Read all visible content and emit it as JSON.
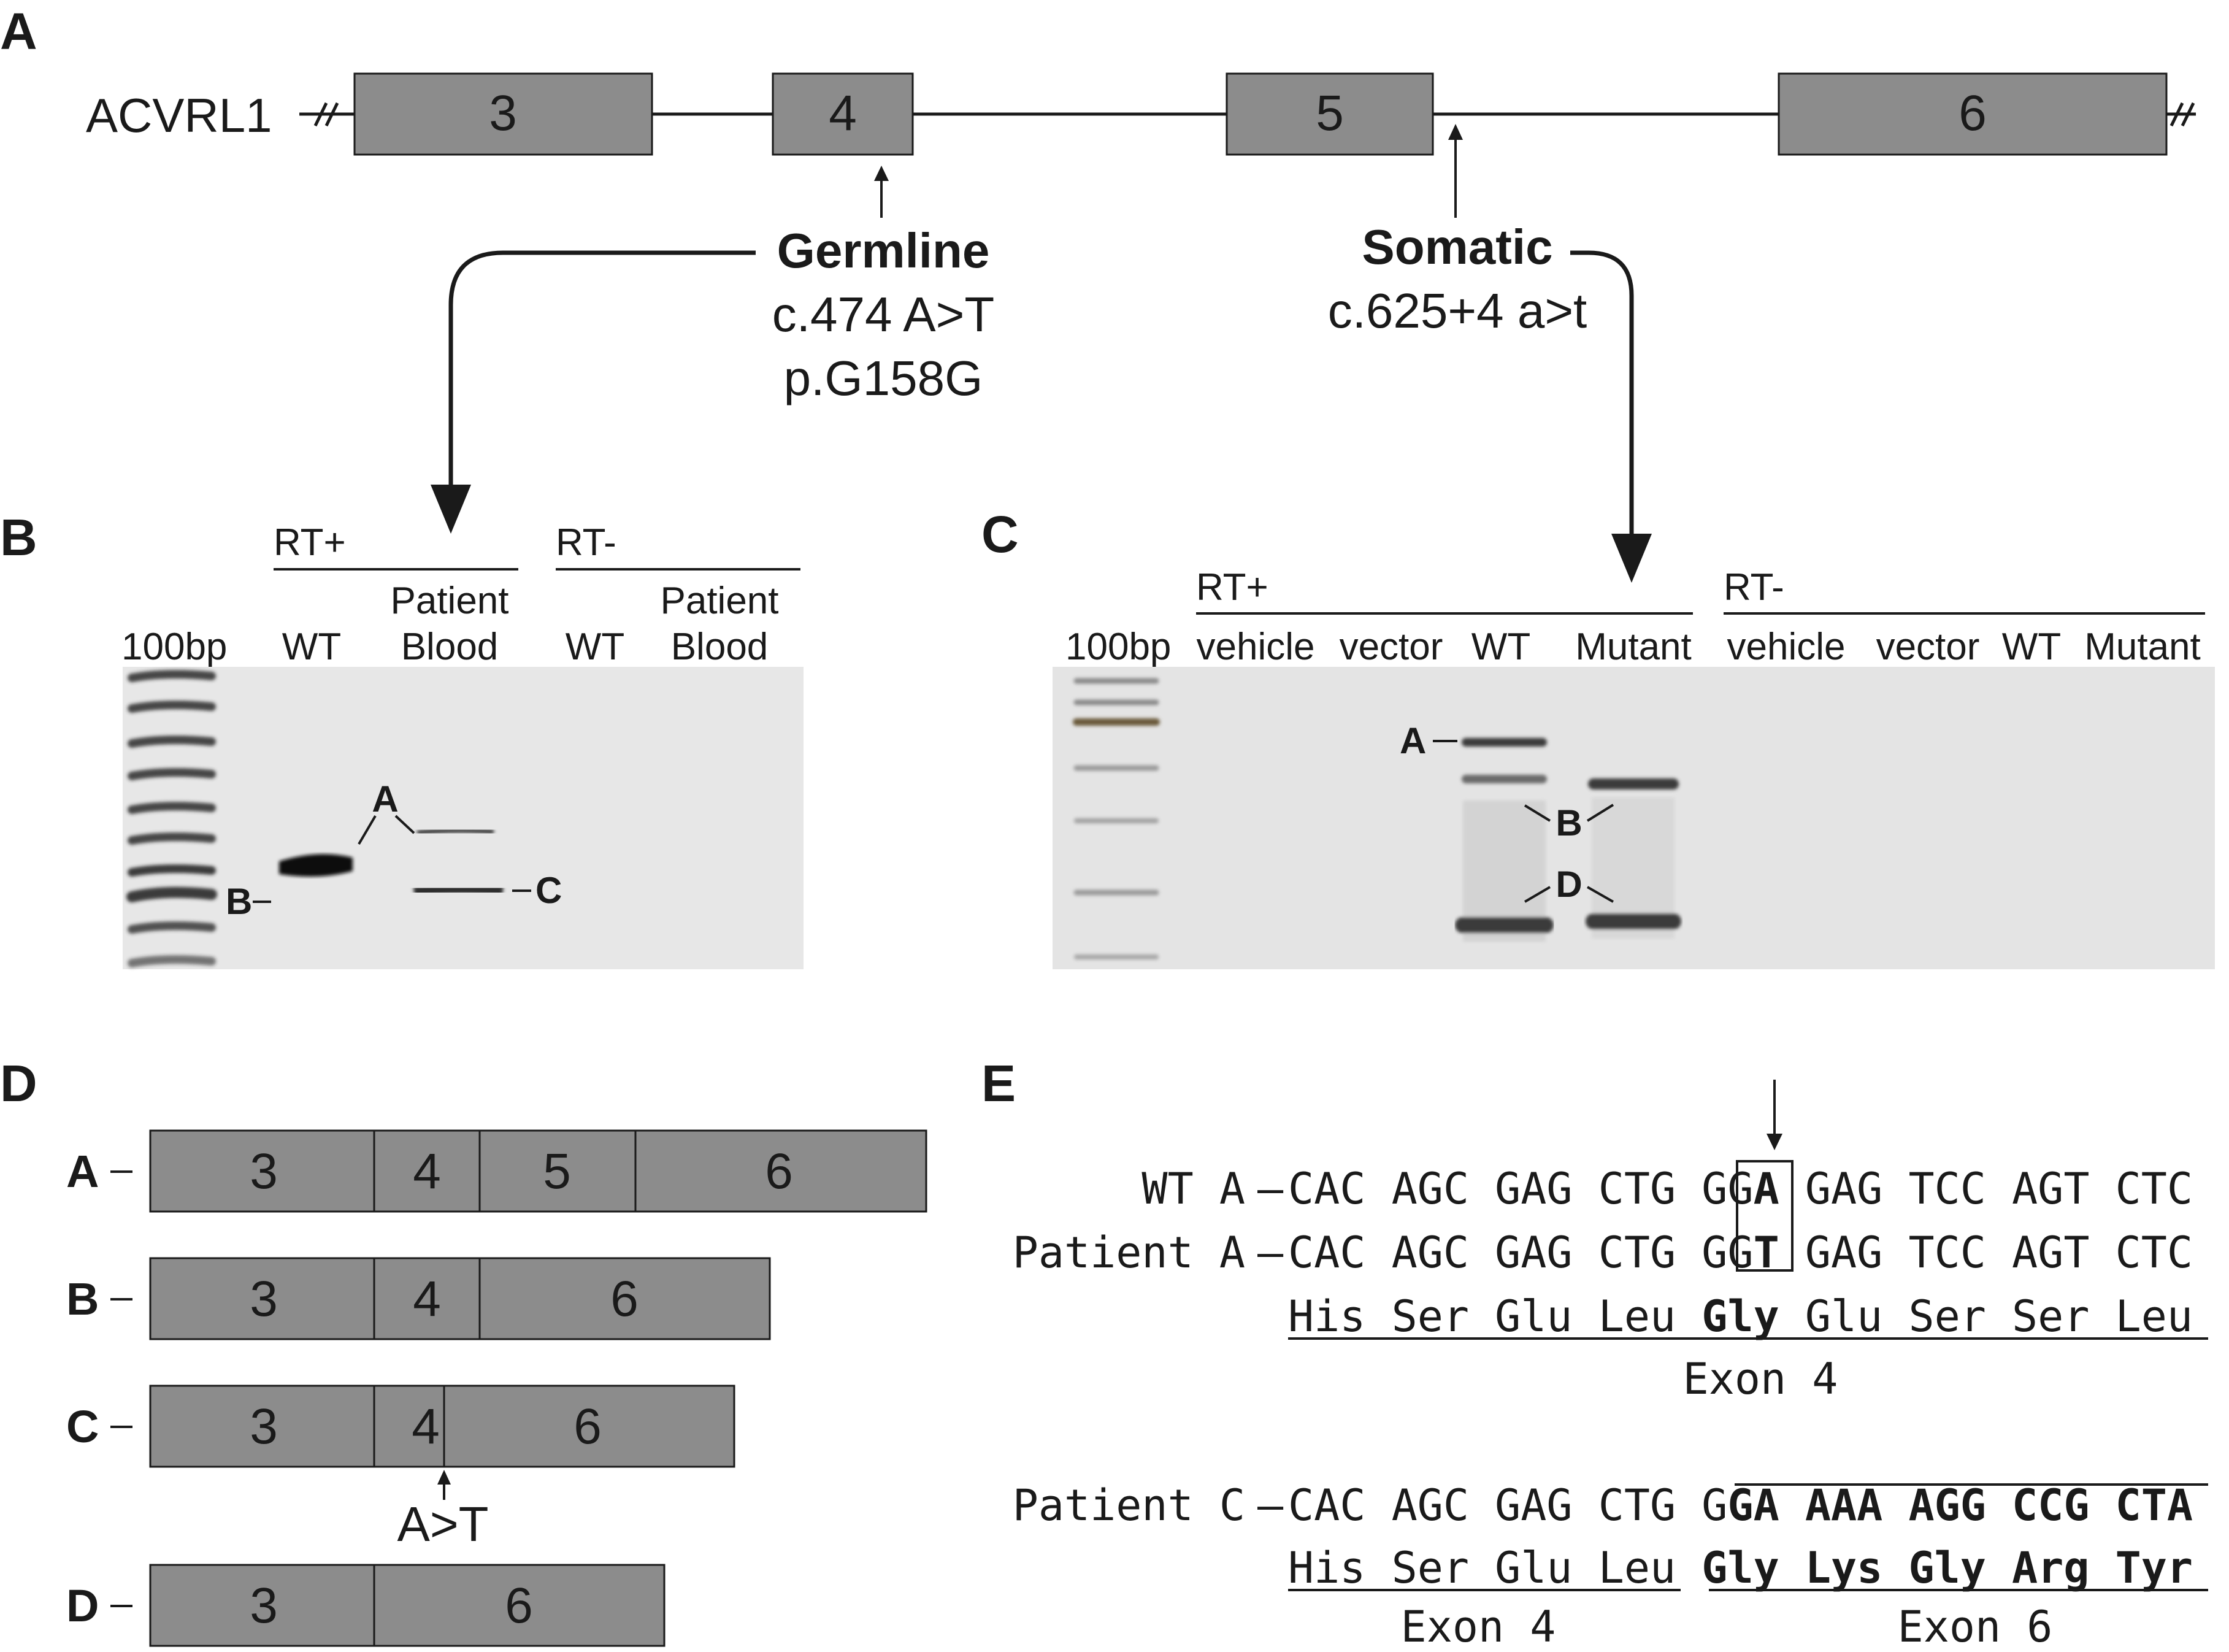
{
  "panels": {
    "a": {
      "letter": "A",
      "gene": "ACVRL1",
      "exons": [
        "3",
        "4",
        "5",
        "6"
      ],
      "germline": {
        "title": "Germline",
        "line1": "c.474 A>T",
        "line2": "p.G158G"
      },
      "somatic": {
        "title": "Somatic",
        "line1": "c.625+4 a>t"
      }
    },
    "b": {
      "letter": "B",
      "ladder": "100bp",
      "rt_plus": "RT+",
      "rt_minus": "RT-",
      "lanes": [
        {
          "line1": "",
          "line2": "WT"
        },
        {
          "line1": "Patient",
          "line2": "Blood"
        },
        {
          "line1": "",
          "line2": "WT"
        },
        {
          "line1": "Patient",
          "line2": "Blood"
        }
      ],
      "bands": {
        "a": "A",
        "b": "B",
        "c": "C"
      }
    },
    "c": {
      "letter": "C",
      "ladder": "100bp",
      "rt_plus": "RT+",
      "rt_minus": "RT-",
      "lanes": [
        "vehicle",
        "vector",
        "WT",
        "Mutant",
        "vehicle",
        "vector",
        "WT",
        "Mutant"
      ],
      "bands": {
        "a": "A",
        "b": "B",
        "d": "D"
      }
    },
    "d": {
      "letter": "D",
      "transcripts": [
        {
          "label": "A",
          "exons": [
            "3",
            "4",
            "5",
            "6"
          ]
        },
        {
          "label": "B",
          "exons": [
            "3",
            "4",
            "6"
          ]
        },
        {
          "label": "C",
          "exons": [
            "3",
            "4",
            "6"
          ]
        },
        {
          "label": "D",
          "exons": [
            "3",
            "6"
          ]
        }
      ],
      "mutation": "A>T"
    },
    "e": {
      "letter": "E",
      "wt": {
        "name": "WT A",
        "plain": "CAC AGC GAG CTG GG",
        "boxed": "A",
        "tail": " GAG TCC AGT CTC"
      },
      "patient_a": {
        "name": "Patient A",
        "plain": "CAC AGC GAG CTG GG",
        "boxed": "T",
        "tail": " GAG TCC AGT CTC"
      },
      "aa_a": {
        "pre": "His Ser Glu Leu ",
        "bold": "Gly",
        "post": " Glu Ser Ser Leu"
      },
      "exon_a": "Exon 4",
      "patient_c": {
        "name": "Patient C",
        "plain": "CAC AGC GAG CTG G",
        "bold": "GA AAA AGG CCG CTA"
      },
      "aa_c": {
        "pre": "His Ser Glu Leu ",
        "bold": "Gly Lys Gly Arg Tyr"
      },
      "exon_c1": "Exon 4",
      "exon_c2": "Exon 6",
      "dash": "–"
    }
  }
}
